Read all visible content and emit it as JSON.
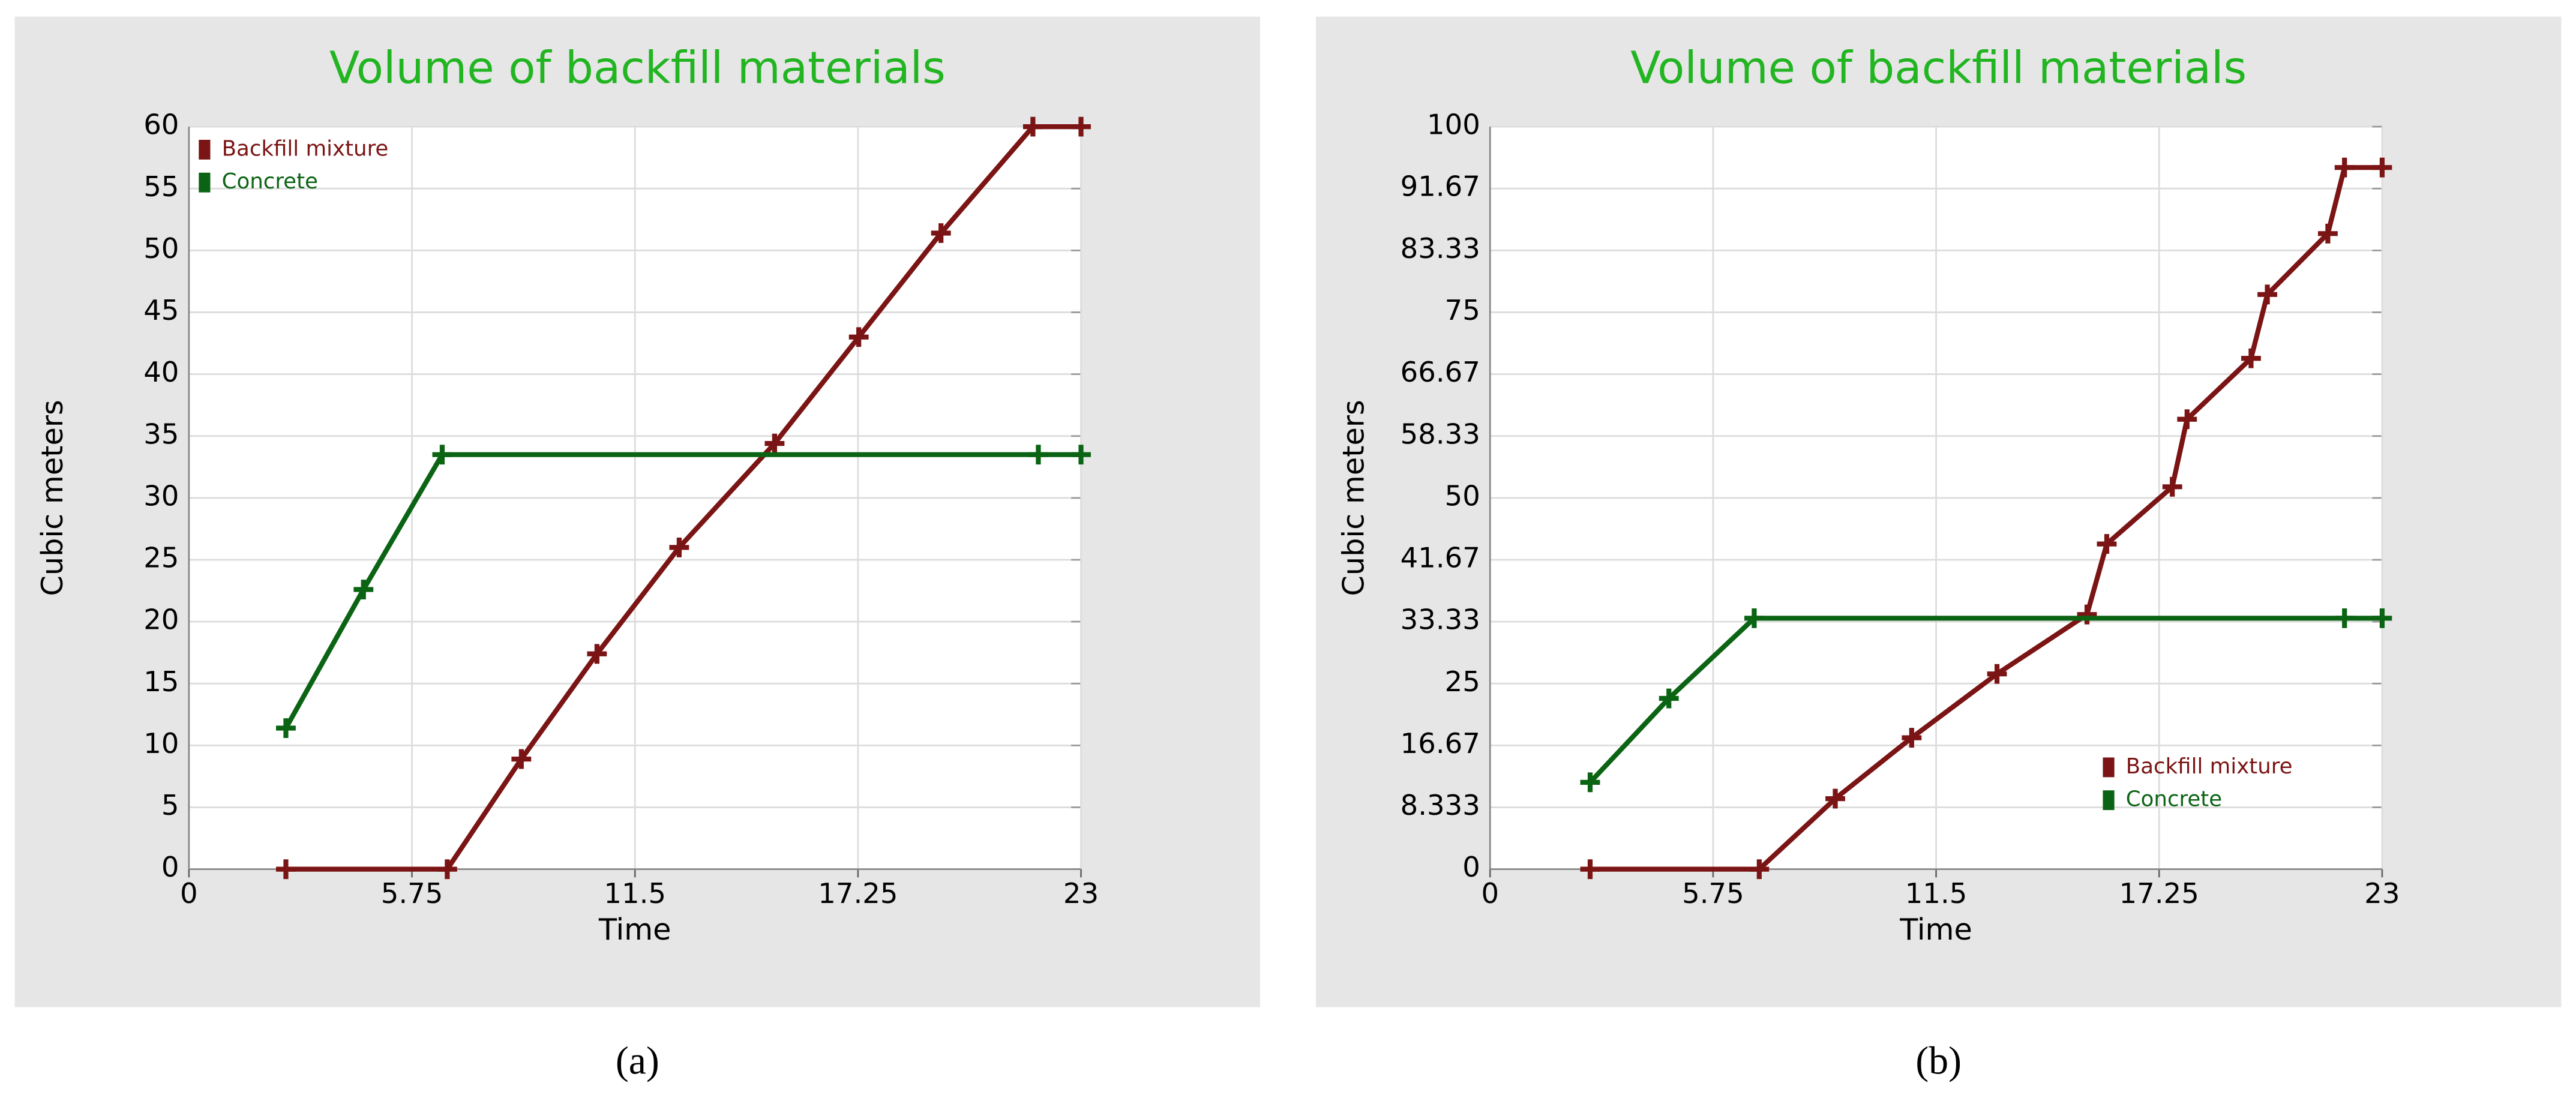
{
  "chart_data": [
    {
      "type": "line",
      "title": "Volume of backfill materials",
      "x_label": "Time",
      "y_label": "Cubic meters",
      "caption": "(a)",
      "xlim": [
        0,
        23
      ],
      "xticks": [
        0,
        5.75,
        11.5,
        17.25,
        23
      ],
      "ylim": [
        0,
        60
      ],
      "yticks": [
        0,
        5,
        10,
        15,
        20,
        25,
        30,
        35,
        40,
        45,
        50,
        55,
        60
      ],
      "grid": true,
      "legend": "upper left",
      "series": [
        {
          "name": "Backfill mixture",
          "color": "#7b1414",
          "x": [
            2.5,
            6.66,
            8.57,
            10.52,
            12.64,
            15.1,
            17.27,
            19.39,
            21.76,
            23
          ],
          "values": [
            0,
            0,
            8.9,
            17.4,
            26,
            34.4,
            43,
            51.4,
            60,
            60
          ]
        },
        {
          "name": "Concrete",
          "color": "#0b6414",
          "x": [
            2.5,
            4.5,
            6.53,
            21.9,
            23
          ],
          "values": [
            11.4,
            22.6,
            33.5,
            33.5,
            33.5
          ]
        }
      ]
    },
    {
      "type": "line",
      "title": "Volume of backfill materials",
      "x_label": "Time",
      "y_label": "Cubic meters",
      "caption": "(b)",
      "xlim": [
        0,
        23
      ],
      "xticks": [
        0,
        5.75,
        11.5,
        17.25,
        23
      ],
      "ylim": [
        0,
        100
      ],
      "yticks": [
        0,
        8.333,
        16.67,
        25,
        33.33,
        41.67,
        50,
        58.33,
        66.67,
        75,
        83.33,
        91.67,
        100
      ],
      "grid": true,
      "legend": "lower right",
      "series": [
        {
          "name": "Backfill mixture",
          "color": "#7b1414",
          "x": [
            2.58,
            6.94,
            8.9,
            10.87,
            13.07,
            15.39,
            15.9,
            17.59,
            17.97,
            19.62,
            20.04,
            21.6,
            22.03,
            23
          ],
          "values": [
            0,
            0,
            9.5,
            17.7,
            26.3,
            34.3,
            43.8,
            51.5,
            60.6,
            68.8,
            77.4,
            85.6,
            94.5,
            94.5
          ]
        },
        {
          "name": "Concrete",
          "color": "#0b6414",
          "x": [
            2.58,
            4.61,
            6.81,
            22.03,
            23
          ],
          "values": [
            11.7,
            23,
            33.8,
            33.8,
            33.8
          ]
        }
      ]
    }
  ]
}
